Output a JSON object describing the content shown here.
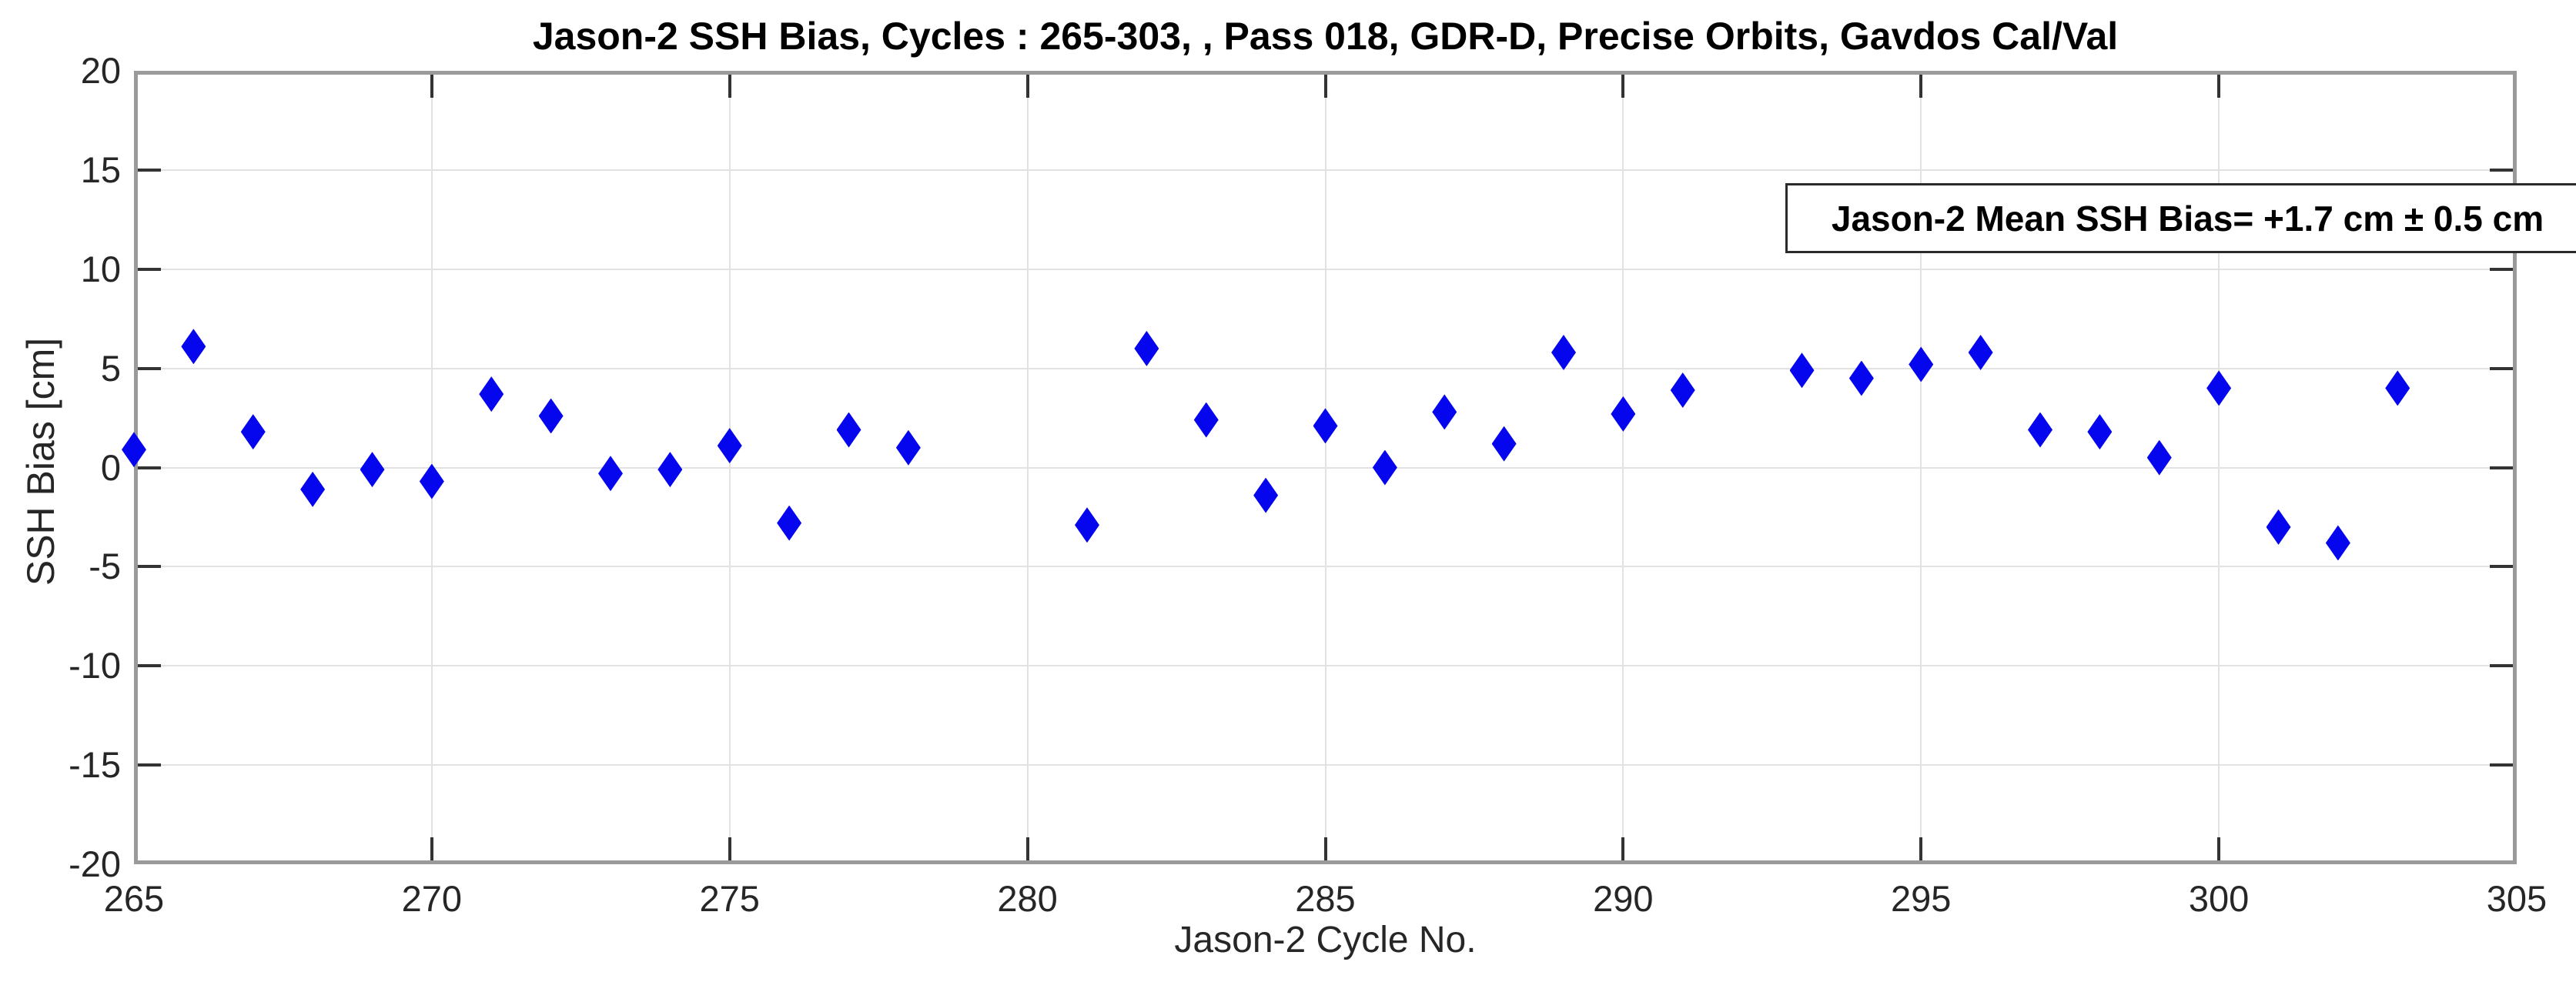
{
  "figure": {
    "background": "#ffffff"
  },
  "chart_data": {
    "type": "scatter",
    "title": "Jason-2 SSH Bias, Cycles : 265-303, , Pass 018, GDR-D, Precise Orbits, Gavdos Cal/Val",
    "xlabel": "Jason-2 Cycle No.",
    "ylabel": "SSH Bias [cm]",
    "xlim": [
      265,
      305
    ],
    "ylim": [
      -20,
      20
    ],
    "x_ticks": [
      265,
      270,
      275,
      280,
      285,
      290,
      295,
      300,
      305
    ],
    "y_ticks": [
      -20,
      -15,
      -10,
      -5,
      0,
      5,
      10,
      15,
      20
    ],
    "grid": true,
    "legend_position": "none",
    "marker": {
      "shape": "diamond",
      "color": "#0505ee"
    },
    "series": [
      {
        "name": "Jason-2 SSH Bias",
        "x": [
          265,
          266,
          267,
          268,
          269,
          270,
          271,
          272,
          273,
          274,
          275,
          276,
          277,
          278,
          281,
          282,
          283,
          284,
          285,
          286,
          287,
          288,
          289,
          290,
          291,
          293,
          294,
          295,
          296,
          297,
          298,
          299,
          300,
          301,
          302,
          303
        ],
        "y": [
          0.9,
          6.1,
          1.8,
          -1.1,
          -0.1,
          -0.7,
          3.7,
          2.6,
          -0.3,
          -0.1,
          1.1,
          -2.8,
          1.9,
          1.0,
          -2.9,
          6.0,
          2.4,
          -1.4,
          2.1,
          0.0,
          2.8,
          1.2,
          5.8,
          2.7,
          3.9,
          4.9,
          4.5,
          5.2,
          5.8,
          1.9,
          1.8,
          0.5,
          4.0,
          -3.0,
          -3.8,
          4.0
        ]
      }
    ],
    "annotation": {
      "text": "Jason-2 Mean SSH Bias= +1.7 cm ± 0.5 cm",
      "position": "top-right"
    },
    "stats": {
      "mean_cm": "+1.7",
      "uncertainty_cm": "0.5"
    }
  },
  "colors": {
    "marker": "#0505ee",
    "grid": "#e2e2e2",
    "frame": "#9a9a9a",
    "tick_mark": "#333333",
    "tick_label": "#262626",
    "title": "#000000",
    "annotation_border": "#2b2b2b",
    "background": "#ffffff"
  }
}
